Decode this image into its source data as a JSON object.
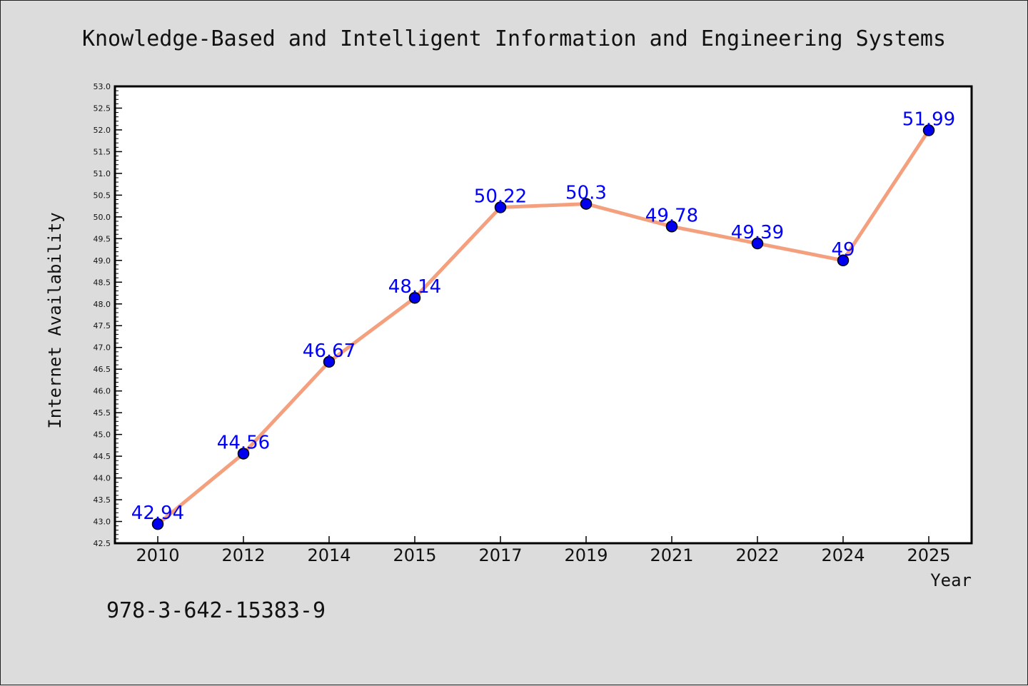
{
  "chart_data": {
    "type": "line",
    "title": "Knowledge-Based and Intelligent Information and Engineering Systems",
    "xlabel": "Year",
    "ylabel": "Internet Availability",
    "categories": [
      "2010",
      "2012",
      "2014",
      "2015",
      "2017",
      "2019",
      "2021",
      "2022",
      "2024",
      "2025"
    ],
    "series": [
      {
        "values": [
          42.94,
          44.56,
          46.67,
          48.14,
          50.22,
          50.3,
          49.78,
          49.39,
          49,
          51.99
        ],
        "labels": [
          "42.94",
          "44.56",
          "46.67",
          "48.14",
          "50.22",
          "50.3",
          "49.78",
          "49.39",
          "49",
          "51.99"
        ]
      }
    ],
    "ylim": [
      42.5,
      53.0
    ],
    "yticks": [
      "42.5",
      "43.0",
      "43.5",
      "44.0",
      "44.5",
      "45.0",
      "45.5",
      "46.0",
      "46.5",
      "47.0",
      "47.5",
      "48.0",
      "48.5",
      "49.0",
      "49.5",
      "50.0",
      "50.5",
      "51.0",
      "51.5",
      "52.0",
      "52.5",
      "53.0"
    ],
    "grid": false,
    "legend": "none",
    "colors": {
      "line": "#f4a07e",
      "marker": "#0000ee",
      "data_label": "#0000ff",
      "plot_background": "#ffffff",
      "page_background": "#dcdcdc"
    }
  },
  "footer": {
    "isbn": "978-3-642-15383-9"
  }
}
